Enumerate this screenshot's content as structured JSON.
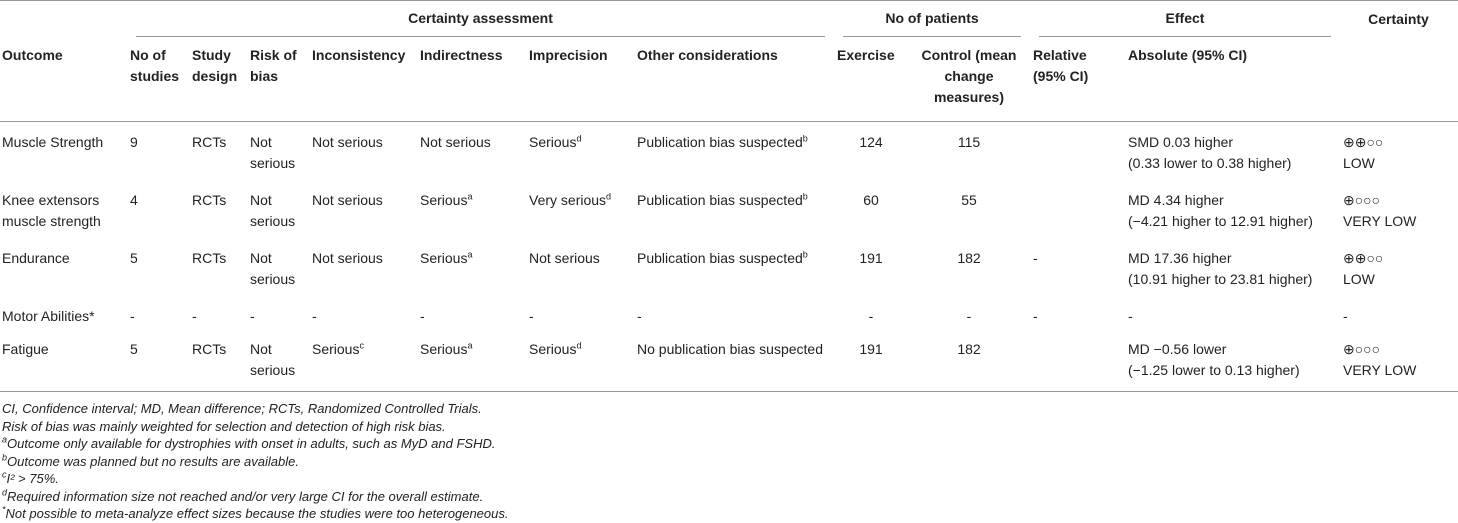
{
  "table": {
    "groups": [
      "Certainty assessment",
      "No of patients",
      "Effect",
      "Certainty"
    ],
    "columns": [
      "Outcome",
      "No of studies",
      "Study design",
      "Risk of bias",
      "Inconsistency",
      "Indirectness",
      "Imprecision",
      "Other considerations",
      "Exercise",
      "Control (mean change measures)",
      "Relative (95% CI)",
      "Absolute (95% CI)"
    ],
    "rows": [
      [
        "Muscle Strength",
        9,
        "RCTs",
        "Not serious",
        "Not serious",
        "Not serious",
        {
          "text": "Serious",
          "sup": "d"
        },
        {
          "text": "Publication bias suspected",
          "sup": "b"
        },
        124,
        115,
        null,
        [
          "SMD 0.03 higher",
          "(0.33 lower to 0.38 higher)"
        ],
        [
          "⊕⊕○○",
          "LOW"
        ]
      ],
      [
        "Knee extensors muscle strength",
        4,
        "RCTs",
        "Not serious",
        "Not serious",
        {
          "text": "Serious",
          "sup": "a"
        },
        {
          "text": "Very serious",
          "sup": "d"
        },
        {
          "text": "Publication bias suspected",
          "sup": "b"
        },
        60,
        55,
        null,
        [
          "MD 4.34 higher",
          "(−4.21 higher to 12.91 higher)"
        ],
        [
          "⊕○○○",
          "VERY LOW"
        ]
      ],
      [
        "Endurance",
        5,
        "RCTs",
        "Not serious",
        "Not serious",
        {
          "text": "Serious",
          "sup": "a"
        },
        "Not serious",
        {
          "text": "Publication bias suspected",
          "sup": "b"
        },
        191,
        182,
        "-",
        [
          "MD 17.36 higher",
          "(10.91 higher to 23.81 higher)"
        ],
        [
          "⊕⊕○○",
          "LOW"
        ]
      ],
      [
        "Motor Abilities*",
        "-",
        "-",
        "-",
        "-",
        "-",
        "-",
        "-",
        "-",
        "-",
        "-",
        [
          "-"
        ],
        [
          "-"
        ]
      ],
      [
        "Fatigue",
        5,
        "RCTs",
        "Not serious",
        {
          "text": "Serious",
          "sup": "c"
        },
        {
          "text": "Serious",
          "sup": "a"
        },
        {
          "text": "Serious",
          "sup": "d"
        },
        "No publication bias suspected",
        191,
        182,
        null,
        [
          "MD −0.56 lower",
          "(−1.25 lower to 0.13 higher)"
        ],
        [
          "⊕○○○",
          "VERY LOW"
        ]
      ]
    ]
  },
  "footnotes": [
    {
      "text": "CI, Confidence interval; MD, Mean difference; RCTs, Randomized Controlled Trials."
    },
    {
      "text": "Risk of bias was mainly weighted for selection and detection of high risk bias."
    },
    {
      "mark": "a",
      "text": "Outcome only available for dystrophies with onset in adults, such as MyD and FSHD."
    },
    {
      "mark": "b",
      "text": "Outcome was planned but no results are available."
    },
    {
      "mark": "c",
      "text": "I² > 75%."
    },
    {
      "mark": "d",
      "text": "Required information size not reached and/or very large CI for the overall estimate."
    },
    {
      "mark": "*",
      "text": "Not possible to meta-analyze effect sizes because the studies were too heterogeneous."
    }
  ]
}
